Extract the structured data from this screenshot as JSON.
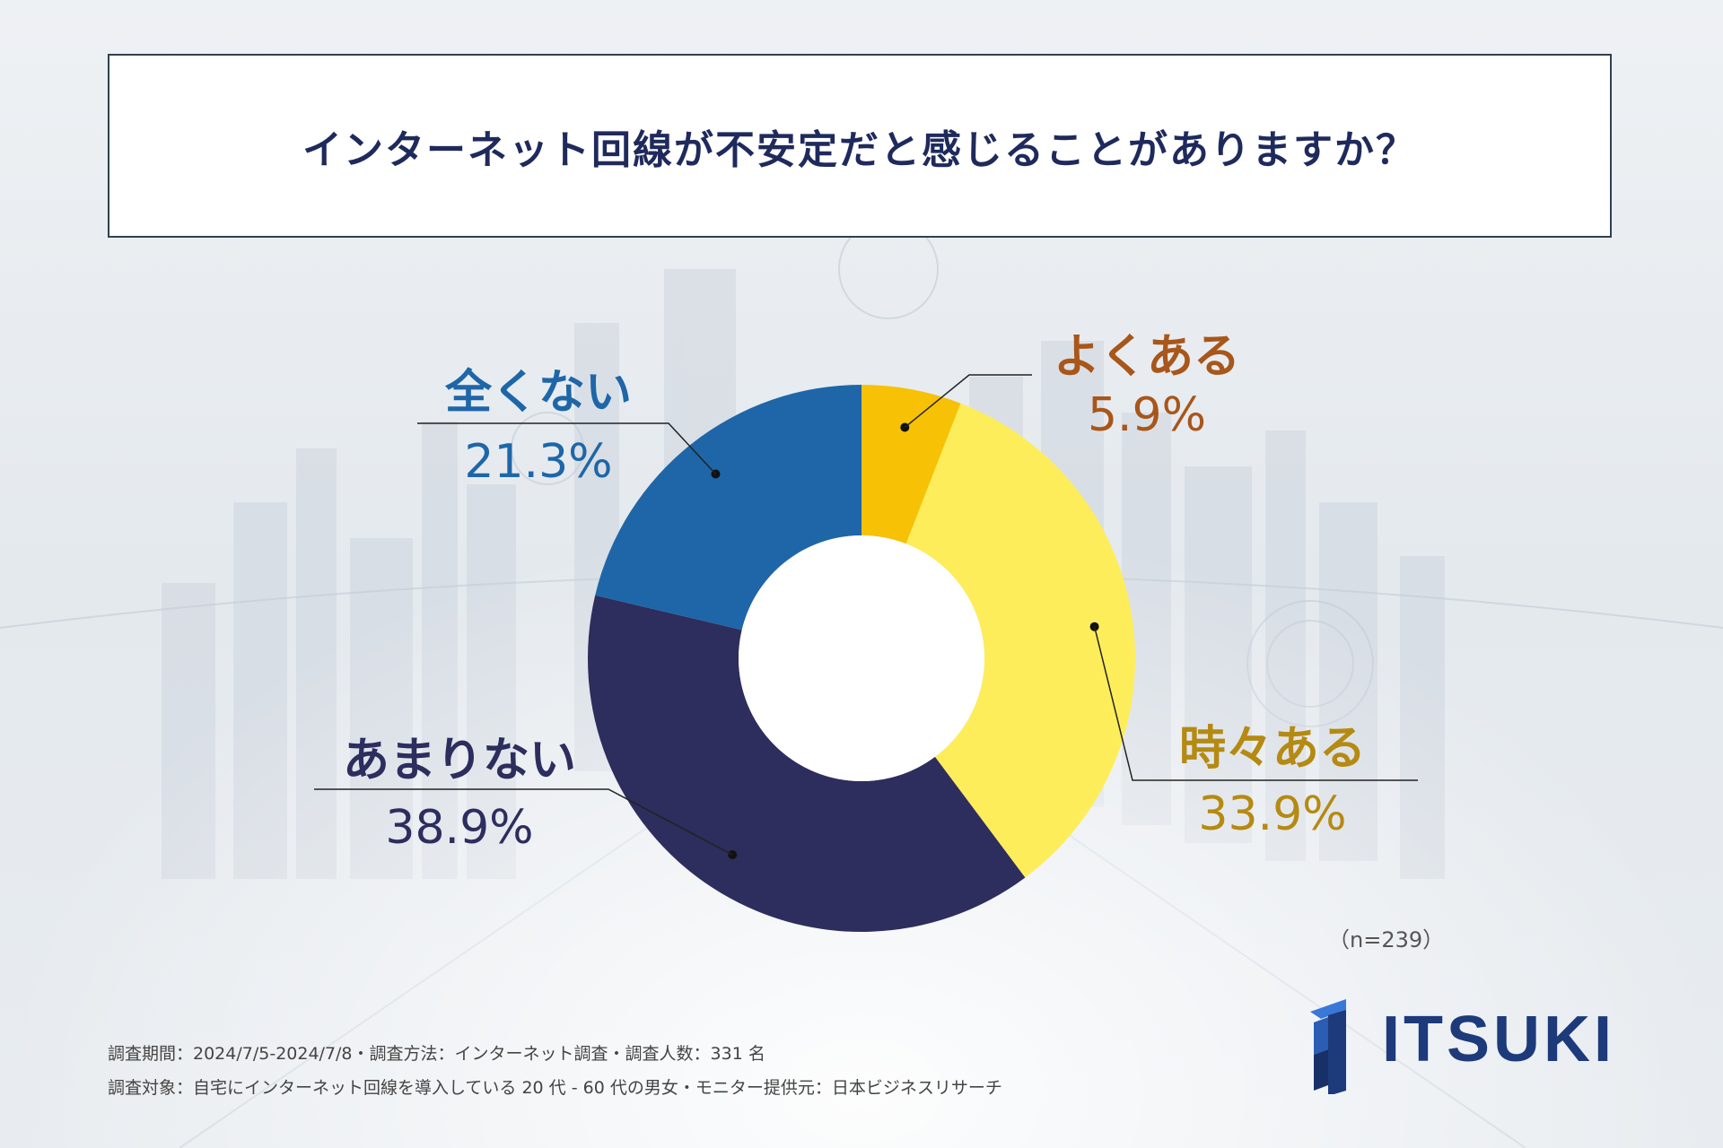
{
  "title": "インターネット回線が不安定だと感じることがありますか？",
  "sample_size": "（n=239）",
  "footnote": {
    "line1": "調査期間：2024/7/5-2024/7/8・調査方法：インターネット調査・調査人数：331 名",
    "line2": "調査対象：自宅にインターネット回線を導入している 20 代 - 60 代の男女・モニター提供元：日本ビジネスリサーチ"
  },
  "logo": {
    "text": "ITSUKI"
  },
  "colors": {
    "often": "#f7c105",
    "sometimes": "#fded5a",
    "rarely": "#2d2d5e",
    "never": "#1e66a8",
    "label_often": "#a8561a",
    "label_sometimes": "#b58a12",
    "label_rarely": "#2d2d5e",
    "label_never": "#1e66a8"
  },
  "chart_data": {
    "type": "pie",
    "variant": "donut",
    "title": "インターネット回線が不安定だと感じることがありますか？",
    "categories": [
      "よくある",
      "時々ある",
      "あまりない",
      "全くない"
    ],
    "values": [
      5.9,
      33.9,
      38.9,
      21.3
    ],
    "value_labels": [
      "5.9%",
      "33.9%",
      "38.9%",
      "21.3%"
    ],
    "unit": "%",
    "start": "12 o'clock",
    "direction": "clockwise"
  }
}
